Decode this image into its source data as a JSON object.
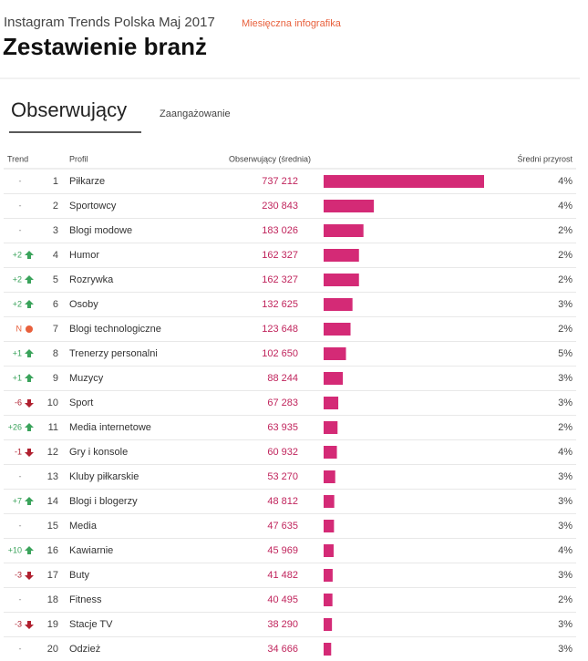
{
  "header": {
    "supertitle": "Instagram Trends Polska Maj 2017",
    "tag": "Miesięczna infografika",
    "title": "Zestawienie branż"
  },
  "tabs": [
    "Obserwujący",
    "Zaangażowanie"
  ],
  "table": {
    "columns": [
      "Trend",
      "Profil",
      "Obserwujący (średnia)",
      "Średni przyrost"
    ],
    "bar_color": "#d42a76",
    "rows": [
      {
        "trend": "-",
        "direction": "none",
        "rank": 1,
        "name": "Piłkarze",
        "followers": 737212,
        "followers_label": "737 212",
        "growth": "4%"
      },
      {
        "trend": "-",
        "direction": "none",
        "rank": 2,
        "name": "Sportowcy",
        "followers": 230843,
        "followers_label": "230 843",
        "growth": "4%"
      },
      {
        "trend": "-",
        "direction": "none",
        "rank": 3,
        "name": "Blogi modowe",
        "followers": 183026,
        "followers_label": "183 026",
        "growth": "2%"
      },
      {
        "trend": "+2",
        "direction": "up",
        "rank": 4,
        "name": "Humor",
        "followers": 162327,
        "followers_label": "162 327",
        "growth": "2%"
      },
      {
        "trend": "+2",
        "direction": "up",
        "rank": 5,
        "name": "Rozrywka",
        "followers": 162327,
        "followers_label": "162 327",
        "growth": "2%"
      },
      {
        "trend": "+2",
        "direction": "up",
        "rank": 6,
        "name": "Osoby",
        "followers": 132625,
        "followers_label": "132 625",
        "growth": "3%"
      },
      {
        "trend": "N",
        "direction": "new",
        "rank": 7,
        "name": "Blogi technologiczne",
        "followers": 123648,
        "followers_label": "123 648",
        "growth": "2%"
      },
      {
        "trend": "+1",
        "direction": "up",
        "rank": 8,
        "name": "Trenerzy personalni",
        "followers": 102650,
        "followers_label": "102 650",
        "growth": "5%"
      },
      {
        "trend": "+1",
        "direction": "up",
        "rank": 9,
        "name": "Muzycy",
        "followers": 88244,
        "followers_label": "88 244",
        "growth": "3%"
      },
      {
        "trend": "-6",
        "direction": "down",
        "rank": 10,
        "name": "Sport",
        "followers": 67283,
        "followers_label": "67 283",
        "growth": "3%"
      },
      {
        "trend": "+26",
        "direction": "up",
        "rank": 11,
        "name": "Media internetowe",
        "followers": 63935,
        "followers_label": "63 935",
        "growth": "2%"
      },
      {
        "trend": "-1",
        "direction": "down",
        "rank": 12,
        "name": "Gry i konsole",
        "followers": 60932,
        "followers_label": "60 932",
        "growth": "4%"
      },
      {
        "trend": "-",
        "direction": "none",
        "rank": 13,
        "name": "Kluby piłkarskie",
        "followers": 53270,
        "followers_label": "53 270",
        "growth": "3%"
      },
      {
        "trend": "+7",
        "direction": "up",
        "rank": 14,
        "name": "Blogi i blogerzy",
        "followers": 48812,
        "followers_label": "48 812",
        "growth": "3%"
      },
      {
        "trend": "-",
        "direction": "none",
        "rank": 15,
        "name": "Media",
        "followers": 47635,
        "followers_label": "47 635",
        "growth": "3%"
      },
      {
        "trend": "+10",
        "direction": "up",
        "rank": 16,
        "name": "Kawiarnie",
        "followers": 45969,
        "followers_label": "45 969",
        "growth": "4%"
      },
      {
        "trend": "-3",
        "direction": "down",
        "rank": 17,
        "name": "Buty",
        "followers": 41482,
        "followers_label": "41 482",
        "growth": "3%"
      },
      {
        "trend": "-",
        "direction": "none",
        "rank": 18,
        "name": "Fitness",
        "followers": 40495,
        "followers_label": "40 495",
        "growth": "2%"
      },
      {
        "trend": "-3",
        "direction": "down",
        "rank": 19,
        "name": "Stacje TV",
        "followers": 38290,
        "followers_label": "38 290",
        "growth": "3%"
      },
      {
        "trend": "-",
        "direction": "none",
        "rank": 20,
        "name": "Odzież",
        "followers": 34666,
        "followers_label": "34 666",
        "growth": "3%"
      }
    ]
  }
}
